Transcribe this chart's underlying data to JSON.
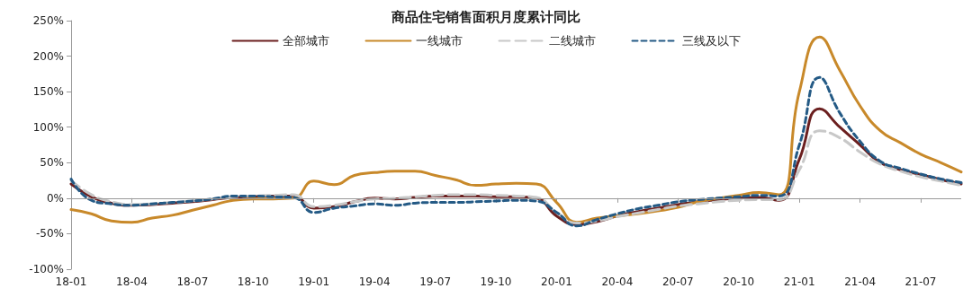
{
  "chart_data": {
    "type": "line",
    "title": "商品住宅销售面积月度累计同比",
    "categories": [
      "18-01",
      null,
      null,
      "18-04",
      null,
      null,
      "18-07",
      null,
      null,
      "18-10",
      null,
      null,
      "19-01",
      null,
      null,
      "19-04",
      null,
      null,
      "19-07",
      null,
      null,
      "19-10",
      null,
      null,
      "20-01",
      null,
      null,
      "20-04",
      null,
      null,
      "20-07",
      null,
      null,
      "20-10",
      null,
      null,
      "21-01",
      null,
      null,
      "21-04",
      null,
      null,
      "21-07",
      null,
      null
    ],
    "series": [
      {
        "name": "全部城市",
        "color": "#6b1f1f",
        "line_style": "solid",
        "values": [
          20,
          2,
          -7,
          -10,
          -9,
          -7,
          -5,
          -2,
          1,
          2,
          3,
          3,
          -14,
          -12,
          -5,
          0,
          -1,
          1,
          3,
          3,
          3,
          2,
          2,
          0,
          -25,
          -37,
          -33,
          -25,
          -19,
          -14,
          -9,
          -5,
          -2,
          0,
          1,
          -3,
          55,
          126,
          100,
          75,
          50,
          40,
          33,
          26,
          20
        ]
      },
      {
        "name": "一线城市",
        "color": "#c8892a",
        "line_style": "solid",
        "values": [
          -16,
          -22,
          -32,
          -34,
          -28,
          -24,
          -17,
          -10,
          -3,
          -1,
          -1,
          0,
          24,
          19,
          32,
          36,
          38,
          38,
          32,
          26,
          18,
          20,
          21,
          20,
          -6,
          -34,
          -28,
          -25,
          -22,
          -18,
          -13,
          -5,
          0,
          4,
          8,
          5,
          150,
          227,
          180,
          130,
          95,
          78,
          62,
          50,
          37
        ]
      },
      {
        "name": "二线城市",
        "color": "#c8c8c8",
        "line_style": "dashed",
        "values": [
          25,
          5,
          -5,
          -9,
          -8,
          -6,
          -4,
          -1,
          2,
          3,
          4,
          5,
          -12,
          -10,
          -5,
          -1,
          0,
          2,
          4,
          5,
          5,
          4,
          3,
          1,
          -20,
          -35,
          -32,
          -26,
          -21,
          -16,
          -11,
          -8,
          -5,
          -3,
          -2,
          -2,
          40,
          95,
          85,
          65,
          48,
          38,
          30,
          24,
          18
        ]
      },
      {
        "name": "三线及以下",
        "color": "#245a85",
        "line_style": "dotted",
        "values": [
          27,
          -3,
          -8,
          -10,
          -8,
          -6,
          -4,
          -1,
          3,
          3,
          2,
          1,
          -20,
          -14,
          -11,
          -8,
          -10,
          -7,
          -6,
          -6,
          -5,
          -4,
          -3,
          -4,
          -20,
          -39,
          -30,
          -22,
          -15,
          -10,
          -5,
          -2,
          0,
          2,
          4,
          3,
          75,
          170,
          120,
          80,
          52,
          42,
          34,
          27,
          22
        ]
      }
    ],
    "ylim": [
      -100,
      250
    ],
    "yticks": [
      {
        "value": -100,
        "label": "-100%"
      },
      {
        "value": -50,
        "label": "-50%"
      },
      {
        "value": 0,
        "label": "0%"
      },
      {
        "value": 50,
        "label": "50%"
      },
      {
        "value": 100,
        "label": "100%"
      },
      {
        "value": 150,
        "label": "150%"
      },
      {
        "value": 200,
        "label": "200%"
      },
      {
        "value": 250,
        "label": "250%"
      }
    ],
    "ref_lines": [
      {
        "axis": "y",
        "value": 0,
        "color": "#999999"
      }
    ],
    "grid": false,
    "legend": "top",
    "marker": "none"
  }
}
